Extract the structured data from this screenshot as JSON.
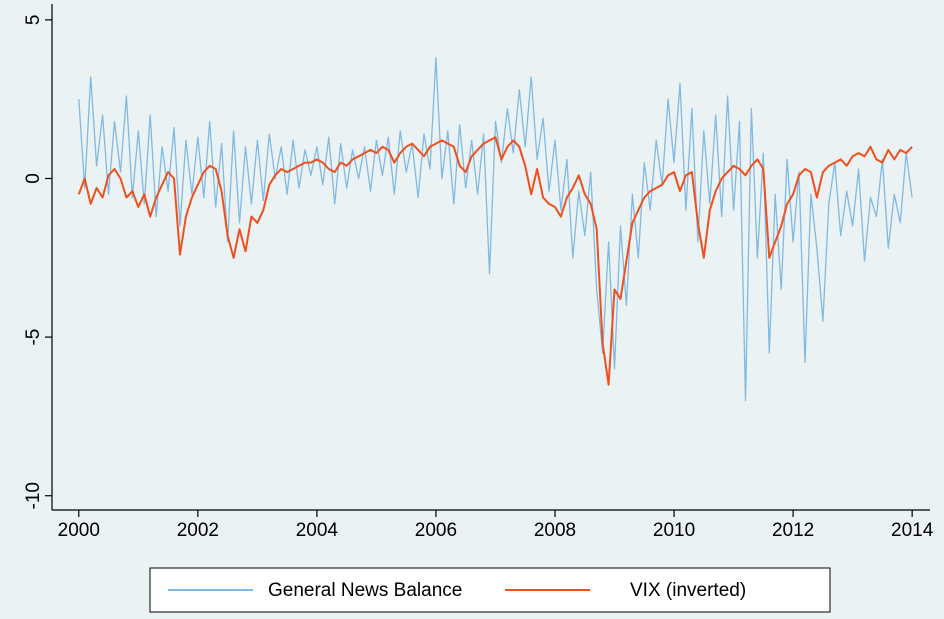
{
  "chart_data": {
    "type": "line",
    "x": [
      2000,
      2000.1,
      2000.2,
      2000.3,
      2000.4,
      2000.5,
      2000.6,
      2000.7,
      2000.8,
      2000.9,
      2001,
      2001.1,
      2001.2,
      2001.3,
      2001.4,
      2001.5,
      2001.6,
      2001.7,
      2001.8,
      2001.9,
      2002,
      2002.1,
      2002.2,
      2002.3,
      2002.4,
      2002.5,
      2002.6,
      2002.7,
      2002.8,
      2002.9,
      2003,
      2003.1,
      2003.2,
      2003.3,
      2003.4,
      2003.5,
      2003.6,
      2003.7,
      2003.8,
      2003.9,
      2004,
      2004.1,
      2004.2,
      2004.3,
      2004.4,
      2004.5,
      2004.6,
      2004.7,
      2004.8,
      2004.9,
      2005,
      2005.1,
      2005.2,
      2005.3,
      2005.4,
      2005.5,
      2005.6,
      2005.7,
      2005.8,
      2005.9,
      2006,
      2006.1,
      2006.2,
      2006.3,
      2006.4,
      2006.5,
      2006.6,
      2006.7,
      2006.8,
      2006.9,
      2007,
      2007.1,
      2007.2,
      2007.3,
      2007.4,
      2007.5,
      2007.6,
      2007.7,
      2007.8,
      2007.9,
      2008,
      2008.1,
      2008.2,
      2008.3,
      2008.4,
      2008.5,
      2008.6,
      2008.7,
      2008.8,
      2008.9,
      2009,
      2009.1,
      2009.2,
      2009.3,
      2009.4,
      2009.5,
      2009.6,
      2009.7,
      2009.8,
      2009.9,
      2010,
      2010.1,
      2010.2,
      2010.3,
      2010.4,
      2010.5,
      2010.6,
      2010.7,
      2010.8,
      2010.9,
      2011,
      2011.1,
      2011.2,
      2011.3,
      2011.4,
      2011.5,
      2011.6,
      2011.7,
      2011.8,
      2011.9,
      2012,
      2012.1,
      2012.2,
      2012.3,
      2012.4,
      2012.5,
      2012.6,
      2012.7,
      2012.8,
      2012.9,
      2013,
      2013.1,
      2013.2,
      2013.3,
      2013.4,
      2013.5,
      2013.6,
      2013.7,
      2013.8,
      2013.9,
      2014
    ],
    "series": [
      {
        "name": "General News Balance",
        "color": "#80b9e3",
        "values": [
          2.5,
          -0.3,
          3.2,
          0.4,
          2.0,
          -0.5,
          1.8,
          0.2,
          2.6,
          -0.6,
          1.5,
          -0.8,
          2.0,
          -1.2,
          1.0,
          -0.4,
          1.6,
          -1.5,
          1.2,
          -0.5,
          1.3,
          -0.6,
          1.8,
          -0.9,
          1.1,
          -2.0,
          1.5,
          -1.4,
          1.0,
          -0.8,
          1.2,
          -0.7,
          1.4,
          0.0,
          1.0,
          -0.5,
          1.2,
          -0.3,
          0.9,
          0.1,
          1.0,
          -0.2,
          1.3,
          -0.8,
          1.1,
          -0.3,
          0.9,
          0.0,
          1.0,
          -0.4,
          1.2,
          0.1,
          1.3,
          -0.5,
          1.5,
          0.2,
          1.1,
          -0.6,
          1.4,
          0.3,
          3.8,
          0.0,
          1.5,
          -0.8,
          1.7,
          -0.3,
          1.2,
          -0.5,
          1.4,
          -3.0,
          1.8,
          0.5,
          2.2,
          0.8,
          2.8,
          1.0,
          3.2,
          0.6,
          1.9,
          -0.4,
          1.2,
          -1.0,
          0.6,
          -2.5,
          -0.4,
          -1.8,
          0.2,
          -3.5,
          -5.5,
          -2.0,
          -6.0,
          -1.5,
          -4.0,
          -0.5,
          -2.5,
          0.5,
          -1.0,
          1.2,
          -0.2,
          2.5,
          0.5,
          3.0,
          -1.0,
          2.2,
          -2.0,
          1.5,
          -0.8,
          2.0,
          -1.2,
          2.6,
          -1.0,
          1.8,
          -7.0,
          2.2,
          -2.5,
          0.8,
          -5.5,
          -0.5,
          -3.5,
          0.6,
          -2.0,
          0.2,
          -5.8,
          -0.5,
          -2.2,
          -4.5,
          -0.8,
          0.5,
          -1.8,
          -0.4,
          -1.5,
          0.3,
          -2.6,
          -0.6,
          -1.2,
          0.6,
          -2.2,
          -0.5,
          -1.4,
          0.8,
          -0.6
        ]
      },
      {
        "name": "VIX (inverted)",
        "color": "#f0501e",
        "values": [
          -0.5,
          0,
          -0.8,
          -0.3,
          -0.6,
          0.1,
          0.3,
          0,
          -0.6,
          -0.4,
          -0.9,
          -0.5,
          -1.2,
          -0.6,
          -0.2,
          0.2,
          0,
          -2.4,
          -1.2,
          -0.6,
          -0.2,
          0.2,
          0.4,
          0.3,
          -0.4,
          -1.8,
          -2.5,
          -1.6,
          -2.3,
          -1.2,
          -1.4,
          -1.0,
          -0.2,
          0.1,
          0.3,
          0.2,
          0.3,
          0.4,
          0.5,
          0.5,
          0.6,
          0.5,
          0.3,
          0.2,
          0.5,
          0.4,
          0.6,
          0.7,
          0.8,
          0.9,
          0.8,
          1.0,
          0.9,
          0.5,
          0.8,
          1.0,
          1.1,
          0.9,
          0.7,
          1.0,
          1.1,
          1.2,
          1.1,
          1.0,
          0.4,
          0.2,
          0.7,
          0.9,
          1.1,
          1.2,
          1.3,
          0.6,
          1.0,
          1.2,
          1.0,
          0.4,
          -0.5,
          0.3,
          -0.6,
          -0.8,
          -0.9,
          -1.2,
          -0.6,
          -0.3,
          0.1,
          -0.5,
          -0.8,
          -1.6,
          -5.2,
          -6.5,
          -3.5,
          -3.8,
          -2.6,
          -1.4,
          -1.0,
          -0.6,
          -0.4,
          -0.3,
          -0.2,
          0.1,
          0.2,
          -0.4,
          0.1,
          0.2,
          -1.4,
          -2.5,
          -1.0,
          -0.4,
          0,
          0.2,
          0.4,
          0.3,
          0.1,
          0.4,
          0.6,
          0.3,
          -2.5,
          -2.0,
          -1.5,
          -0.8,
          -0.5,
          0.1,
          0.3,
          0.2,
          -0.6,
          0.2,
          0.4,
          0.5,
          0.6,
          0.4,
          0.7,
          0.8,
          0.7,
          1.0,
          0.6,
          0.5,
          0.9,
          0.6,
          0.9,
          0.8,
          1.0
        ]
      }
    ],
    "xlim": [
      1999.55,
      2014.3
    ],
    "xticks": [
      2000,
      2002,
      2004,
      2006,
      2008,
      2010,
      2012,
      2014
    ],
    "ylim": [
      -10.45,
      5.5
    ],
    "yticks": [
      -10,
      -5,
      0,
      5
    ],
    "legend": "bottom"
  }
}
